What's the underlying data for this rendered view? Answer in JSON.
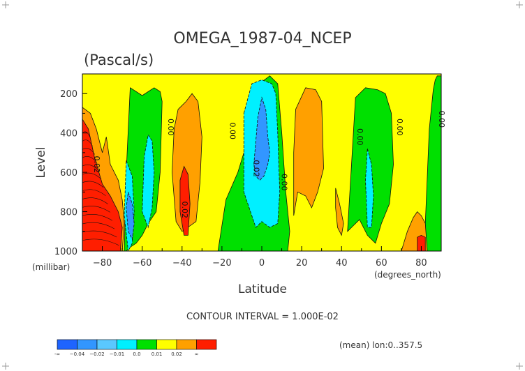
{
  "chart_data": {
    "type": "heatmap",
    "title": "OMEGA_1987-04_NCEP",
    "subtitle": "(Pascal/s)",
    "xlabel": "Latitude",
    "x_units": "(degrees_north)",
    "ylabel": "Level",
    "y_units": "(millibar)",
    "xlim": [
      -90,
      90
    ],
    "ylim": [
      1000,
      100
    ],
    "x_ticks": [
      -80,
      -60,
      -40,
      -20,
      0,
      20,
      40,
      60,
      80
    ],
    "x_tick_labels": [
      "−80",
      "−60",
      "−40",
      "−20",
      "0",
      "20",
      "40",
      "60",
      "80"
    ],
    "y_ticks": [
      200,
      400,
      600,
      800,
      1000
    ],
    "y_tick_labels": [
      "200",
      "400",
      "600",
      "800",
      "1000"
    ],
    "contour_interval_text": "CONTOUR INTERVAL = 1.000E-02",
    "footnote": "(mean) lon:0..357.5",
    "legend": {
      "colors": [
        "#1e64ff",
        "#3296ff",
        "#5ac8ff",
        "#00f0ff",
        "#00e000",
        "#ffff00",
        "#ffa000",
        "#ff1e00"
      ],
      "labels": [
        "-∞",
        "−0.04",
        "−0.02",
        "−0.01",
        "0.0",
        "0.01",
        "0.02",
        "∞"
      ]
    },
    "contour_labels": [
      {
        "text": "0.00",
        "lat": -47,
        "level": 370
      },
      {
        "text": "0.00",
        "lat": -16,
        "level": 390
      },
      {
        "text": "0.02",
        "lat": -4,
        "level": 580
      },
      {
        "text": "0.00",
        "lat": 10,
        "level": 650
      },
      {
        "text": "0.02",
        "lat": -40,
        "level": 790
      },
      {
        "text": "0.02",
        "lat": -84,
        "level": 560
      },
      {
        "text": "0.00",
        "lat": 48,
        "level": 420
      },
      {
        "text": "0.00",
        "lat": 68,
        "level": 370
      },
      {
        "text": "0.00",
        "lat": 89,
        "level": 330
      }
    ],
    "regions": [
      {
        "color": "#ffa000",
        "lat": [
          -90,
          -86,
          -83,
          -80,
          -78,
          -76,
          -72,
          -70,
          -69,
          -70,
          -74,
          -80,
          -84,
          -90
        ],
        "level": [
          270,
          300,
          380,
          500,
          420,
          560,
          640,
          740,
          860,
          1000,
          1000,
          1000,
          1000,
          1000
        ]
      },
      {
        "color": "#ff1e00",
        "lat": [
          -90,
          -87,
          -84,
          -80,
          -76,
          -72,
          -70,
          -71,
          -76,
          -82,
          -90
        ],
        "level": [
          330,
          380,
          520,
          660,
          720,
          800,
          880,
          1000,
          1000,
          1000,
          1000
        ]
      },
      {
        "color": "#00e000",
        "lat": [
          -69,
          -68,
          -66,
          -60,
          -54,
          -51,
          -50,
          -51,
          -53,
          -57,
          -60,
          -63,
          -66,
          -68,
          -69
        ],
        "level": [
          1000,
          600,
          170,
          210,
          170,
          190,
          240,
          600,
          800,
          860,
          920,
          960,
          980,
          1000,
          1000
        ]
      },
      {
        "color": "#00f0ff",
        "lat": [
          -57,
          -55,
          -54,
          -55,
          -57,
          -60,
          -59,
          -57
        ],
        "level": [
          410,
          440,
          600,
          780,
          880,
          800,
          520,
          410
        ]
      },
      {
        "color": "#00f0ff",
        "lat": [
          -68,
          -65,
          -64,
          -65,
          -67,
          -69
        ],
        "level": [
          540,
          620,
          800,
          960,
          1000,
          820
        ]
      },
      {
        "color": "#3296ff",
        "lat": [
          -67,
          -65,
          -64,
          -65,
          -67,
          -68
        ],
        "level": [
          700,
          760,
          860,
          940,
          900,
          780
        ]
      },
      {
        "color": "#ffa000",
        "lat": [
          -42,
          -38,
          -35,
          -32,
          -30,
          -31,
          -33,
          -40,
          -43,
          -45,
          -44,
          -42
        ],
        "level": [
          280,
          240,
          200,
          240,
          420,
          650,
          850,
          900,
          850,
          600,
          380,
          280
        ]
      },
      {
        "color": "#ff1e00",
        "lat": [
          -39,
          -37,
          -36,
          -37,
          -39,
          -41,
          -41,
          -39
        ],
        "level": [
          570,
          610,
          760,
          920,
          920,
          800,
          640,
          570
        ]
      },
      {
        "color": "#00e000",
        "lat": [
          -22,
          -18,
          -12,
          -6,
          0,
          4,
          8,
          10,
          12,
          14,
          13,
          10,
          6,
          0,
          -10,
          -16,
          -19,
          -22
        ],
        "level": [
          1000,
          740,
          600,
          400,
          140,
          110,
          150,
          400,
          700,
          900,
          1000,
          1000,
          1000,
          1000,
          1000,
          1000,
          1000,
          1000
        ]
      },
      {
        "color": "#00f0ff",
        "lat": [
          -9,
          -5,
          0,
          5,
          7,
          8,
          9,
          8,
          4,
          0,
          -3,
          -9
        ],
        "level": [
          300,
          150,
          130,
          150,
          200,
          400,
          700,
          860,
          880,
          850,
          880,
          700
        ]
      },
      {
        "color": "#3296ff",
        "lat": [
          -4,
          -2,
          0,
          2,
          3,
          4,
          3,
          1,
          -1,
          -3,
          -4
        ],
        "level": [
          560,
          320,
          220,
          280,
          420,
          500,
          560,
          620,
          640,
          620,
          560
        ]
      },
      {
        "color": "#ffa000",
        "lat": [
          17,
          22,
          27,
          30,
          31,
          28,
          25,
          22,
          18,
          16,
          16
        ],
        "level": [
          280,
          170,
          180,
          240,
          580,
          700,
          780,
          720,
          700,
          820,
          500
        ]
      },
      {
        "color": "#ffa000",
        "lat": [
          37,
          39,
          41,
          40,
          38,
          37
        ],
        "level": [
          680,
          760,
          860,
          920,
          880,
          780
        ]
      },
      {
        "color": "#00e000",
        "lat": [
          43,
          47,
          52,
          58,
          62,
          65,
          66,
          64,
          60,
          57,
          53,
          49,
          45,
          43
        ],
        "level": [
          900,
          220,
          170,
          180,
          200,
          300,
          560,
          760,
          860,
          960,
          920,
          840,
          880,
          900
        ]
      },
      {
        "color": "#00f0ff",
        "lat": [
          53,
          55,
          56,
          55,
          53,
          52
        ],
        "level": [
          480,
          560,
          720,
          880,
          880,
          640
        ]
      },
      {
        "color": "#00e000",
        "lat": [
          81,
          82,
          84,
          86,
          87,
          88,
          89,
          90,
          90,
          88,
          85,
          83
        ],
        "level": [
          1000,
          860,
          380,
          180,
          130,
          110,
          110,
          110,
          1000,
          1000,
          1000,
          1000
        ]
      },
      {
        "color": "#ffa000",
        "lat": [
          70,
          73,
          76,
          78,
          80,
          82,
          83,
          79,
          75,
          72,
          70
        ],
        "level": [
          1000,
          900,
          830,
          800,
          820,
          860,
          1000,
          1000,
          1000,
          1000,
          1000
        ]
      },
      {
        "color": "#ff1e00",
        "lat": [
          78,
          80,
          82,
          82,
          78
        ],
        "level": [
          930,
          920,
          930,
          1000,
          1000
        ]
      }
    ]
  }
}
